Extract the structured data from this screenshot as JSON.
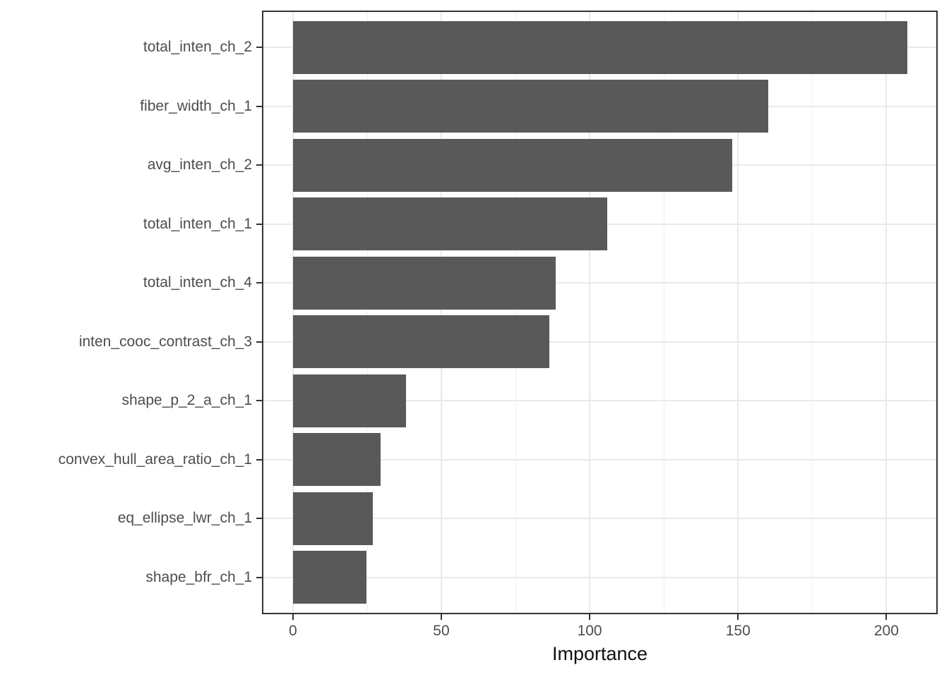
{
  "chart_data": {
    "type": "bar",
    "orientation": "horizontal",
    "title": "",
    "xlabel": "Importance",
    "ylabel": "",
    "categories": [
      "total_inten_ch_2",
      "fiber_width_ch_1",
      "avg_inten_ch_2",
      "total_inten_ch_1",
      "total_inten_ch_4",
      "inten_cooc_contrast_ch_3",
      "shape_p_2_a_ch_1",
      "convex_hull_area_ratio_ch_1",
      "eq_ellipse_lwr_ch_1",
      "shape_bfr_ch_1"
    ],
    "values": [
      207.1,
      160.2,
      148.1,
      105.9,
      88.6,
      86.3,
      38.2,
      29.6,
      27.0,
      24.9
    ],
    "x_ticks": [
      0,
      50,
      100,
      150,
      200
    ],
    "x_tick_labels": [
      "0",
      "50",
      "100",
      "150",
      "200"
    ],
    "x_minor_ticks": [
      25,
      75,
      125,
      175
    ],
    "xlim": [
      -9.95,
      216.8
    ],
    "grid": "vertical major+minor, horizontal major at category centers",
    "legend_position": "none",
    "colors": {
      "bar_fill": "#595959",
      "panel_border": "#333333",
      "grid_major": "#e9e9e9",
      "grid_minor": "#f0f0f0",
      "axis_tick": "#333333",
      "tick_label": "#4d4d4d",
      "axis_title": "#111111",
      "background": "#ffffff"
    }
  }
}
